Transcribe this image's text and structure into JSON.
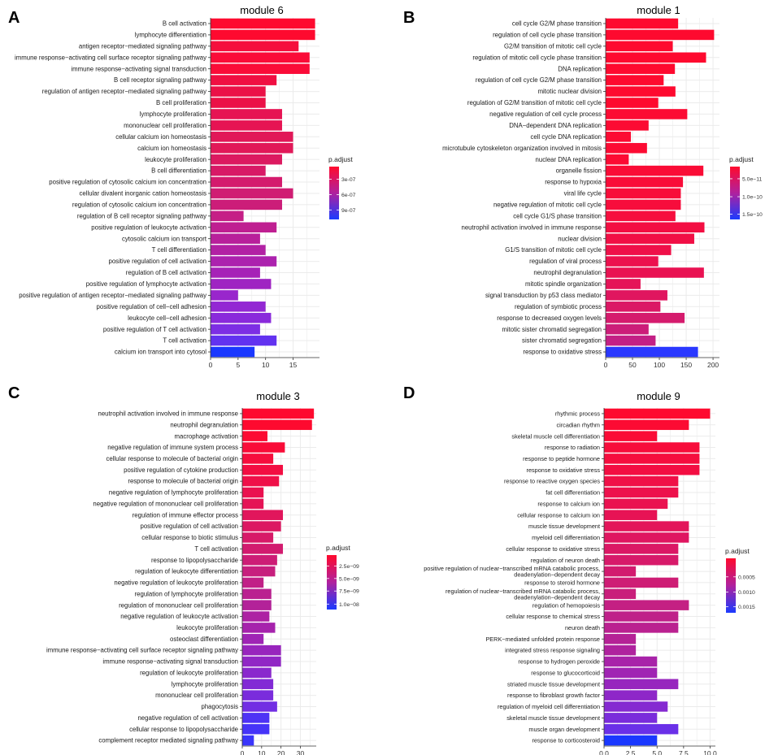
{
  "figure": {
    "legend_title": "p.adjust"
  },
  "chart_data": [
    {
      "panel": "A",
      "type": "bar",
      "orientation": "horizontal",
      "title": "module 6",
      "xlim": [
        0,
        19.8
      ],
      "xticks": [
        0,
        5,
        10,
        15
      ],
      "xtick_labels": [
        "0",
        "5",
        "10",
        "15"
      ],
      "legend": {
        "title": "p.adjust",
        "ticks": [
          {
            "frac": 0.24,
            "label": "3e-07"
          },
          {
            "frac": 0.53,
            "label": "6e-07"
          },
          {
            "frac": 0.82,
            "label": "9e-07"
          }
        ]
      },
      "categories": [
        "B cell activation",
        "lymphocyte differentiation",
        "antigen receptor−mediated signaling pathway",
        "immune response−activating cell surface receptor signaling pathway",
        "immune response−activating signal transduction",
        "B cell receptor signaling pathway",
        "regulation of antigen receptor−mediated signaling pathway",
        "B cell proliferation",
        "lymphocyte proliferation",
        "mononuclear cell proliferation",
        "cellular calcium ion homeostasis",
        "calcium ion homeostasis",
        "leukocyte proliferation",
        "B cell differentiation",
        "positive regulation of cytosolic calcium ion concentration",
        "cellular divalent inorganic cation homeostasis",
        "regulation of cytosolic calcium ion concentration",
        "regulation of B cell receptor signaling pathway",
        "positive regulation of leukocyte activation",
        "cytosolic calcium ion transport",
        "T cell differentiation",
        "positive regulation of cell activation",
        "regulation of B cell activation",
        "positive regulation of lymphocyte activation",
        "positive regulation of antigen receptor−mediated signaling pathway",
        "positive regulation of cell−cell adhesion",
        "leukocyte cell−cell adhesion",
        "positive regulation of T cell activation",
        "T cell activation",
        "calcium ion transport into cytosol"
      ],
      "values": [
        19,
        19,
        16,
        18,
        18,
        12,
        10,
        10,
        13,
        13,
        15,
        15,
        13,
        10,
        13,
        15,
        13,
        6,
        12,
        9,
        10,
        12,
        9,
        11,
        5,
        10,
        11,
        9,
        12,
        8
      ],
      "colors": [
        "#fe0a2f",
        "#fe0a2f",
        "#f50f3d",
        "#fa0c38",
        "#fa0c38",
        "#f00f42",
        "#eb1147",
        "#eb1147",
        "#e61453",
        "#e61453",
        "#e11858",
        "#e11858",
        "#dc1960",
        "#d81966",
        "#d41b6d",
        "#d01d73",
        "#cc1d79",
        "#c51f86",
        "#bf1f91",
        "#b8209b",
        "#b221a4",
        "#ac22ae",
        "#a622b7",
        "#9f24c2",
        "#9926cc",
        "#9328d3",
        "#8a2adb",
        "#7d2ee4",
        "#6232f0",
        "#1a38ff"
      ]
    },
    {
      "panel": "B",
      "type": "bar",
      "orientation": "horizontal",
      "title": "module 1",
      "xlim": [
        0,
        212
      ],
      "xticks": [
        0,
        50,
        100,
        150,
        200
      ],
      "xtick_labels": [
        "0",
        "50",
        "100",
        "150",
        "200"
      ],
      "legend": {
        "title": "p.adjust",
        "ticks": [
          {
            "frac": 0.23,
            "label": "5.0e−11"
          },
          {
            "frac": 0.57,
            "label": "1.0e−10"
          },
          {
            "frac": 0.9,
            "label": "1.5e−10"
          }
        ]
      },
      "categories": [
        "cell cycle G2/M phase transition",
        "regulation of cell cycle phase transition",
        "G2/M transition of mitotic cell cycle",
        "regulation of mitotic cell cycle phase transition",
        "DNA replication",
        "regulation of cell cycle G2/M phase transition",
        "mitotic nuclear division",
        "regulation of G2/M transition of mitotic cell cycle",
        "negative regulation of cell cycle process",
        "DNA−dependent DNA replication",
        "cell cycle DNA replication",
        "microtubule cytoskeleton organization involved in mitosis",
        "nuclear DNA replication",
        "organelle fission",
        "response to hypoxia",
        "viral life cycle",
        "negative regulation of mitotic cell cycle",
        "cell cycle G1/S phase transition",
        "neutrophil activation involved in immune response",
        "nuclear division",
        "G1/S transition of mitotic cell cycle",
        "regulation of viral process",
        "neutrophil degranulation",
        "mitotic spindle organization",
        "signal transduction by p53 class mediator",
        "regulation of symbiotic process",
        "response to decreased oxygen levels",
        "mitotic sister chromatid segregation",
        "sister chromatid segregation",
        "response to oxidative stress"
      ],
      "values": [
        135,
        202,
        125,
        187,
        129,
        108,
        130,
        98,
        152,
        80,
        47,
        77,
        43,
        182,
        144,
        140,
        140,
        130,
        184,
        165,
        122,
        98,
        183,
        65,
        115,
        102,
        147,
        80,
        93,
        172
      ],
      "colors": [
        "#fe0a2f",
        "#fe0a2f",
        "#fe0a2f",
        "#fe0a2f",
        "#fe0a2f",
        "#fe0a2f",
        "#fe0a2f",
        "#fe0a2f",
        "#fc0b33",
        "#fc0b33",
        "#fc0b33",
        "#fc0b33",
        "#fc0b33",
        "#fa0c36",
        "#f90c38",
        "#f80d3a",
        "#f70d3c",
        "#f60e3e",
        "#f30e42",
        "#f10f45",
        "#ef1049",
        "#ec114e",
        "#e91252",
        "#e51458",
        "#e0165f",
        "#db1865",
        "#d51b6d",
        "#cc1d79",
        "#c32085",
        "#2a38ff"
      ]
    },
    {
      "panel": "C",
      "type": "bar",
      "orientation": "horizontal",
      "title": "module 3",
      "xlim": [
        0,
        38.2
      ],
      "xticks": [
        0,
        10,
        20,
        30
      ],
      "xtick_labels": [
        "0",
        "10",
        "20",
        "30"
      ],
      "legend": {
        "title": "p.adjust",
        "ticks": [
          {
            "frac": 0.2,
            "label": "2.5e−09"
          },
          {
            "frac": 0.43,
            "label": "5.0e−09"
          },
          {
            "frac": 0.66,
            "label": "7.5e−09"
          },
          {
            "frac": 0.9,
            "label": "1.0e−08"
          }
        ]
      },
      "categories": [
        "neutrophil activation involved in immune response",
        "neutrophil degranulation",
        "macrophage activation",
        "negative regulation of immune system process",
        "cellular response to molecule of bacterial origin",
        "positive regulation of cytokine production",
        "response to molecule of bacterial origin",
        "negative regulation of lymphocyte proliferation",
        "negative regulation of mononuclear cell proliferation",
        "regulation of immune effector process",
        "positive regulation of cell activation",
        "cellular response to biotic stimulus",
        "T cell activation",
        "response to lipopolysaccharide",
        "regulation of leukocyte differentiation",
        "negative regulation of leukocyte proliferation",
        "regulation of lymphocyte proliferation",
        "regulation of mononuclear cell proliferation",
        "negative regulation of leukocyte activation",
        "leukocyte proliferation",
        "osteoclast differentiation",
        "immune response−activating cell surface receptor signaling pathway",
        "immune response−activating signal transduction",
        "regulation of leukocyte proliferation",
        "lymphocyte proliferation",
        "mononuclear cell proliferation",
        "phagocytosis",
        "negative regulation of cell activation",
        "cellular response to lipopolysaccharide",
        "complement receptor mediated signaling pathway"
      ],
      "values": [
        37,
        36,
        13,
        22,
        16,
        21,
        19,
        11,
        11,
        21,
        20,
        16,
        21,
        18,
        17,
        11,
        15,
        15,
        14,
        17,
        11,
        20,
        20,
        15,
        16,
        16,
        18,
        14,
        14,
        6
      ],
      "colors": [
        "#fe0a2f",
        "#fe0a2f",
        "#fc0b33",
        "#f90c38",
        "#f60e3d",
        "#f30e42",
        "#ef1049",
        "#ea114f",
        "#e51456",
        "#e1165c",
        "#dc1862",
        "#d71a68",
        "#d21b6f",
        "#cd1d76",
        "#c71f7e",
        "#c12087",
        "#ba2190",
        "#b32299",
        "#ad22a3",
        "#a623ac",
        "#9f24b5",
        "#9825bd",
        "#9127c5",
        "#8a28cd",
        "#822ad5",
        "#7a2cdc",
        "#722ee3",
        "#4e33f5",
        "#4634f8",
        "#3a35fb"
      ]
    },
    {
      "panel": "D",
      "type": "bar",
      "orientation": "horizontal",
      "title": "module 9",
      "xlim": [
        0,
        10.5
      ],
      "xticks": [
        0,
        2.5,
        5,
        7.5,
        10
      ],
      "xtick_labels": [
        "0.0",
        "2.5",
        "5.0",
        "7.5",
        "10.0"
      ],
      "legend": {
        "title": "p.adjust",
        "ticks": [
          {
            "frac": 0.34,
            "label": "0.0005"
          },
          {
            "frac": 0.62,
            "label": "0.0010"
          },
          {
            "frac": 0.89,
            "label": "0.0015"
          }
        ]
      },
      "categories": [
        "rhythmic process",
        "circadian rhythm",
        "skeletal muscle cell differentiation",
        "response to radiation",
        "response to peptide hormone",
        "response to oxidative stress",
        "response to reactive oxygen species",
        "fat cell differentiation",
        "response to calcium ion",
        "cellular response to calcium ion",
        "muscle tissue development",
        "myeloid cell differentiation",
        "cellular response to oxidative stress",
        "regulation of neuron death",
        "positive regulation of nuclear−transcribed mRNA catabolic process, deadenylation−dependent decay",
        "response to steroid hormone",
        "regulation of nuclear−transcribed mRNA catabolic process, deadenylation−dependent decay",
        "regulation of hemopoiesis",
        "cellular response to chemical stress",
        "neuron death",
        "PERK−mediated unfolded protein response",
        "integrated stress response signaling",
        "response to hydrogen peroxide",
        "response to glucocorticoid",
        "striated muscle tissue development",
        "response to fibroblast growth factor",
        "regulation of myeloid cell differentiation",
        "skeletal muscle tissue development",
        "muscle organ development",
        "response to corticosteroid"
      ],
      "values": [
        10,
        8,
        5,
        9,
        9,
        9,
        7,
        7,
        6,
        5,
        8,
        8,
        7,
        7,
        3,
        7,
        3,
        8,
        7,
        7,
        3,
        3,
        5,
        5,
        7,
        5,
        6,
        5,
        7,
        5
      ],
      "colors": [
        "#fe0a2f",
        "#fc0b33",
        "#fa0c36",
        "#f70d3b",
        "#f50e3e",
        "#f30e42",
        "#f01047",
        "#ed114c",
        "#ea1250",
        "#e71355",
        "#e3155a",
        "#df1660",
        "#db1865",
        "#d71a6a",
        "#d21b6f",
        "#ce1d75",
        "#c91e7b",
        "#c42083",
        "#bf2189",
        "#ba2190",
        "#b52296",
        "#af229e",
        "#a823a9",
        "#a024b3",
        "#9726be",
        "#8e27c8",
        "#852ad1",
        "#7a2cdb",
        "#6a30e8",
        "#1a38ff"
      ]
    }
  ],
  "panels_text": [
    {
      "letter": "A"
    },
    {
      "letter": "B"
    },
    {
      "letter": "C"
    },
    {
      "letter": "D"
    }
  ]
}
